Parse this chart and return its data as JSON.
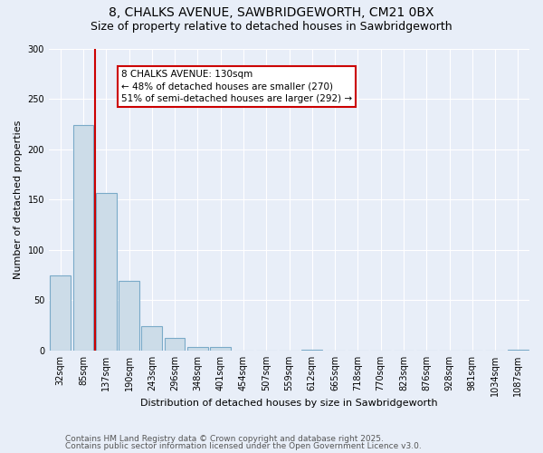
{
  "title_line1": "8, CHALKS AVENUE, SAWBRIDGEWORTH, CM21 0BX",
  "title_line2": "Size of property relative to detached houses in Sawbridgeworth",
  "xlabel": "Distribution of detached houses by size in Sawbridgeworth",
  "ylabel": "Number of detached properties",
  "bar_color": "#ccdce8",
  "bar_edge_color": "#7aaac8",
  "background_color": "#e8eef8",
  "grid_color": "#ffffff",
  "categories": [
    "32sqm",
    "85sqm",
    "137sqm",
    "190sqm",
    "243sqm",
    "296sqm",
    "348sqm",
    "401sqm",
    "454sqm",
    "507sqm",
    "559sqm",
    "612sqm",
    "665sqm",
    "718sqm",
    "770sqm",
    "823sqm",
    "876sqm",
    "928sqm",
    "981sqm",
    "1034sqm",
    "1087sqm"
  ],
  "values": [
    75,
    224,
    157,
    69,
    24,
    13,
    4,
    4,
    0,
    0,
    0,
    1,
    0,
    0,
    0,
    0,
    0,
    0,
    0,
    0,
    1
  ],
  "ylim": [
    0,
    300
  ],
  "yticks": [
    0,
    50,
    100,
    150,
    200,
    250,
    300
  ],
  "annotation_text": "8 CHALKS AVENUE: 130sqm\n← 48% of detached houses are smaller (270)\n51% of semi-detached houses are larger (292) →",
  "footer_line1": "Contains HM Land Registry data © Crown copyright and database right 2025.",
  "footer_line2": "Contains public sector information licensed under the Open Government Licence v3.0.",
  "title_fontsize": 10,
  "subtitle_fontsize": 9,
  "axis_label_fontsize": 8,
  "tick_fontsize": 7,
  "annotation_fontsize": 7.5,
  "footer_fontsize": 6.5
}
